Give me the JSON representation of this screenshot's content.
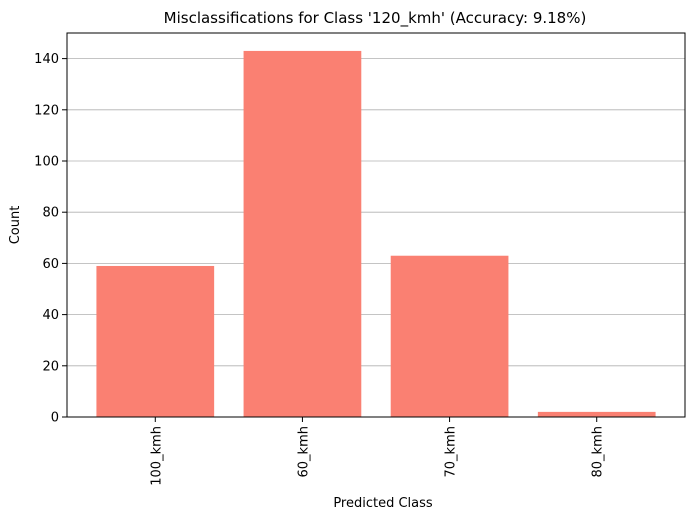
{
  "chart_data": {
    "type": "bar",
    "title": "Misclassifications for Class '120_kmh' (Accuracy: 9.18%)",
    "xlabel": "Predicted Class",
    "ylabel": "Count",
    "categories": [
      "100_kmh",
      "60_kmh",
      "70_kmh",
      "80_kmh"
    ],
    "values": [
      59,
      143,
      63,
      2
    ],
    "ylim": [
      0,
      150
    ],
    "yticks": [
      0,
      20,
      40,
      60,
      80,
      100,
      120,
      140
    ],
    "grid": "y",
    "bar_color": "#fa8072"
  }
}
